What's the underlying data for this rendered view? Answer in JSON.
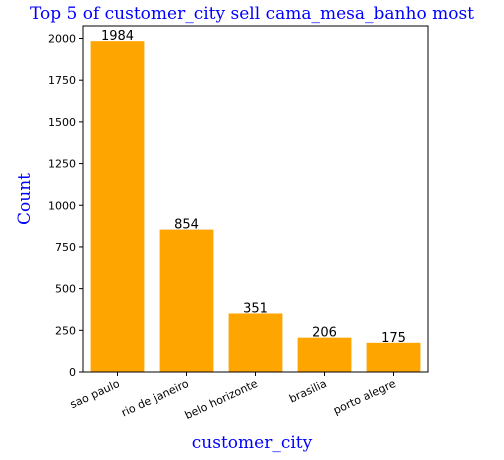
{
  "chart_data": {
    "type": "bar",
    "title": "Top 5 of customer_city sell cama_mesa_banho most",
    "xlabel": "customer_city",
    "ylabel": "Count",
    "categories": [
      "sao paulo",
      "rio de janeiro",
      "belo horizonte",
      "brasilia",
      "porto alegre"
    ],
    "values": [
      1984,
      854,
      351,
      206,
      175
    ],
    "data_labels": [
      "1984",
      "854",
      "351",
      "206",
      "175"
    ],
    "ylim": [
      0,
      2075
    ],
    "yticks": [
      0,
      250,
      500,
      750,
      1000,
      1250,
      1500,
      1750,
      2000
    ],
    "grid": false,
    "legend": "none",
    "colors": {
      "bar": "#ffa500",
      "title": "#0000ff",
      "axis_label": "#0000ff",
      "axis": "#000000"
    }
  }
}
